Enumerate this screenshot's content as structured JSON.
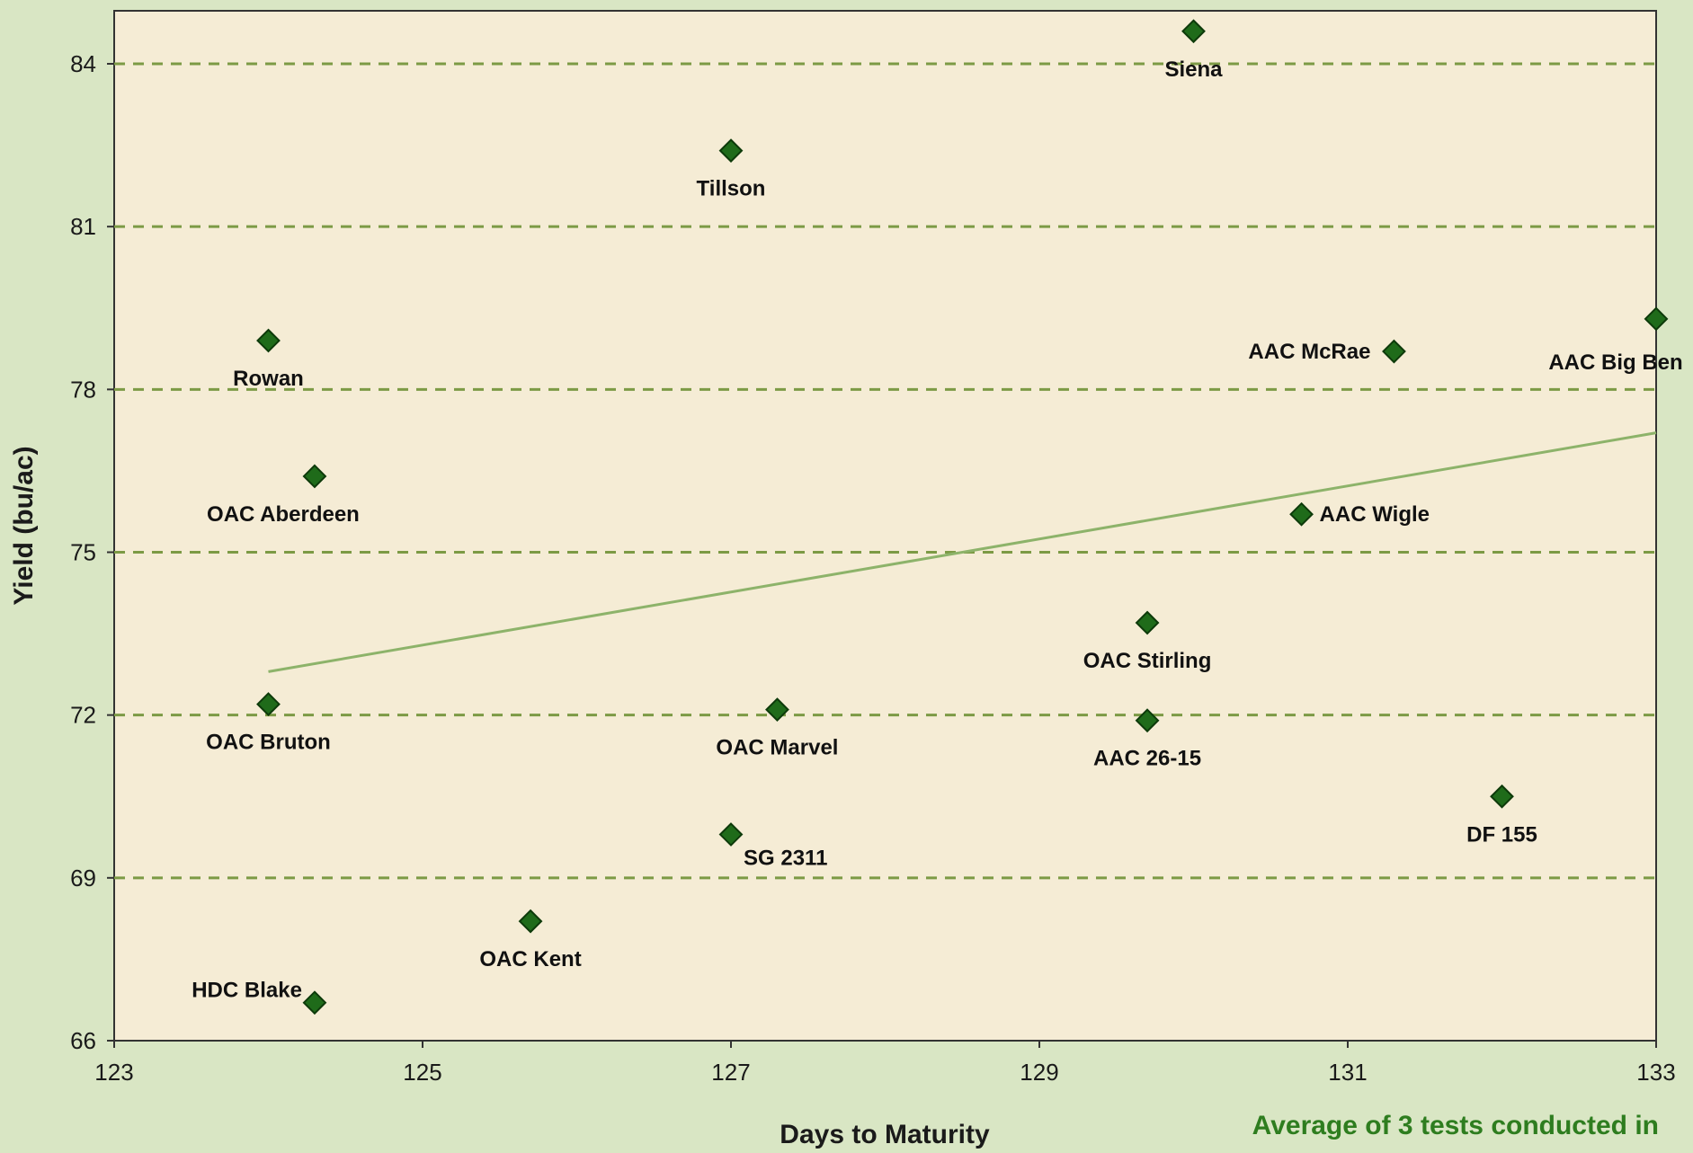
{
  "chart_data": {
    "type": "scatter",
    "xlabel": "Days to Maturity",
    "ylabel": "Yield (bu/ac)",
    "xlim": [
      123,
      133
    ],
    "ylim": [
      66,
      85
    ],
    "x_ticks": [
      123,
      125,
      127,
      129,
      131,
      133
    ],
    "y_ticks": [
      66,
      69,
      72,
      75,
      78,
      81,
      84
    ],
    "grid": "horizontal dashed",
    "points": [
      {
        "label": "Siena",
        "x": 130.0,
        "y": 84.6
      },
      {
        "label": "Tillson",
        "x": 127.0,
        "y": 82.4
      },
      {
        "label": "Rowan",
        "x": 124.0,
        "y": 78.9
      },
      {
        "label": "AAC McRae",
        "x": 131.3,
        "y": 78.7
      },
      {
        "label": "AAC Big Ben",
        "x": 133.0,
        "y": 79.3
      },
      {
        "label": "OAC Aberdeen",
        "x": 124.3,
        "y": 76.4
      },
      {
        "label": "AAC Wigle",
        "x": 130.7,
        "y": 75.7
      },
      {
        "label": "OAC Stirling",
        "x": 129.7,
        "y": 73.7
      },
      {
        "label": "OAC Bruton",
        "x": 124.0,
        "y": 72.2
      },
      {
        "label": "OAC Marvel",
        "x": 127.3,
        "y": 72.1
      },
      {
        "label": "AAC 26-15",
        "x": 129.7,
        "y": 71.9
      },
      {
        "label": "DF 155",
        "x": 132.0,
        "y": 70.5
      },
      {
        "label": "SG 2311",
        "x": 127.0,
        "y": 69.8
      },
      {
        "label": "OAC Kent",
        "x": 125.7,
        "y": 68.2
      },
      {
        "label": "HDC Blake",
        "x": 124.3,
        "y": 66.7
      }
    ],
    "trendline": {
      "x": [
        124.0,
        133.0
      ],
      "y": [
        72.8,
        77.2
      ]
    },
    "colors": {
      "marker": "#1f6b1a",
      "marker_outline": "#0d3a0a",
      "trendline": "#8db36a",
      "gridline": "#7c9a45",
      "plot_bg": "#f5ecd5",
      "page_bg": "#d9e6c4"
    }
  },
  "footnote": "Average of 3 tests conducted in"
}
